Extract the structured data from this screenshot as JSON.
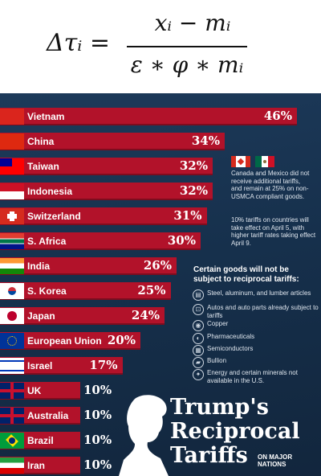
{
  "formula": {
    "lhs": "Δτᵢ =",
    "numerator": "xᵢ − mᵢ",
    "denominator": "ε ∗ φ ∗ mᵢ"
  },
  "chart_data": {
    "type": "bar",
    "orientation": "horizontal",
    "title": "Trump's Reciprocal Tariffs",
    "subtitle": "ON MAJOR NATIONS",
    "categories": [
      "Vietnam",
      "China",
      "Taiwan",
      "Indonesia",
      "Switzerland",
      "S. Africa",
      "India",
      "S. Korea",
      "Japan",
      "European Union",
      "Israel",
      "UK",
      "Australia",
      "Brazil",
      "Iran"
    ],
    "values": [
      46,
      34,
      32,
      32,
      31,
      30,
      26,
      25,
      24,
      20,
      17,
      10,
      10,
      10,
      10
    ],
    "value_labels": [
      "46%",
      "34%",
      "32%",
      "32%",
      "31%",
      "30%",
      "26%",
      "25%",
      "24%",
      "20%",
      "17%",
      "10%",
      "10%",
      "10%",
      "10%"
    ],
    "xlim": [
      0,
      46
    ],
    "grid": false,
    "legend": "none"
  },
  "notes": {
    "canada_mexico": "Canada and Mexico did not receive additional tariffs, and remain at 25% on non-USMCA compliant goods.",
    "timing": "10% tariffs on countries will take effect on April 5, with higher tariff rates taking effect April 9.",
    "exempt_title": "Certain goods will not be subject to reciprocal tariffs:",
    "exempt_goods": [
      {
        "icon": "steel-icon",
        "label": "Steel, aluminum, and lumber articles"
      },
      {
        "icon": "car-icon",
        "label": "Autos and auto parts already subject to tariffs"
      },
      {
        "icon": "copper-icon",
        "label": "Copper"
      },
      {
        "icon": "pill-icon",
        "label": "Pharmaceuticals"
      },
      {
        "icon": "chip-icon",
        "label": "Semiconductors"
      },
      {
        "icon": "bullion-icon",
        "label": "Bullion"
      },
      {
        "icon": "energy-icon",
        "label": "Energy and certain minerals not available in the U.S."
      }
    ]
  },
  "colors": {
    "bar": "#b2122a",
    "background": "#16304c",
    "text": "#ffffff"
  }
}
